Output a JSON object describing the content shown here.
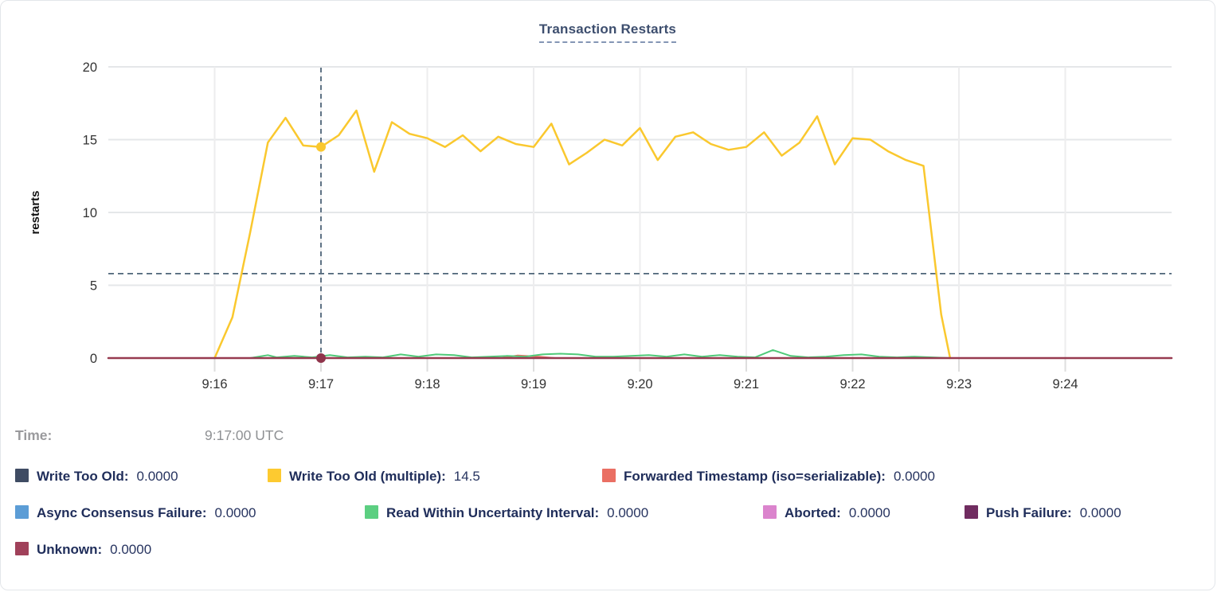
{
  "card": {
    "title": "Transaction Restarts"
  },
  "tooltip": {
    "time_label": "Time:",
    "time_value": "9:17:00 UTC",
    "rows": [
      [
        {
          "label": "Write Too Old:",
          "value": "0.0000",
          "color": "#3f4c63"
        },
        {
          "label": "Write Too Old (multiple):",
          "value": "14.5",
          "color": "#fdca30"
        },
        {
          "label": "Forwarded Timestamp (iso=serializable):",
          "value": "0.0000",
          "color": "#ea6f63"
        }
      ],
      [
        {
          "label": "Async Consensus Failure:",
          "value": "0.0000",
          "color": "#5c9dd6"
        },
        {
          "label": "Read Within Uncertainty Interval:",
          "value": "0.0000",
          "color": "#5ccf81"
        },
        {
          "label": "Aborted:",
          "value": "0.0000",
          "color": "#db84cd"
        },
        {
          "label": "Push Failure:",
          "value": "0.0000",
          "color": "#702c60"
        }
      ],
      [
        {
          "label": "Unknown:",
          "value": "0.0000",
          "color": "#a0415a"
        }
      ]
    ]
  },
  "chart_data": {
    "type": "line",
    "title": "Transaction Restarts",
    "xlabel": "",
    "ylabel": "restarts",
    "ylim": [
      0,
      20
    ],
    "yticks": [
      0,
      5,
      10,
      15,
      20
    ],
    "xticks": [
      {
        "t": 1,
        "label": "9:16"
      },
      {
        "t": 2,
        "label": "9:17"
      },
      {
        "t": 3,
        "label": "9:18"
      },
      {
        "t": 4,
        "label": "9:19"
      },
      {
        "t": 5,
        "label": "9:20"
      },
      {
        "t": 6,
        "label": "9:21"
      },
      {
        "t": 7,
        "label": "9:22"
      },
      {
        "t": 8,
        "label": "9:23"
      },
      {
        "t": 9,
        "label": "9:24"
      }
    ],
    "x_domain_note": "t = minutes after 9:15:00 UTC; visible window 9:15-9:25",
    "x_domain": [
      0,
      10
    ],
    "grid": true,
    "legend_position": "below",
    "crosshair": {
      "t": 2,
      "time": "9:17:00 UTC",
      "hline_value": 5.8
    },
    "markers": [
      {
        "t": 2,
        "value": 14.5,
        "color": "#fac82e"
      },
      {
        "t": 2,
        "value": 0,
        "color": "#8f344b"
      }
    ],
    "series": [
      {
        "name": "Write Too Old",
        "color": "#3f4c63",
        "width": 2,
        "points": [
          [
            0,
            0
          ],
          [
            10,
            0
          ]
        ]
      },
      {
        "name": "Async Consensus Failure",
        "color": "#5c9dd6",
        "width": 2,
        "points": [
          [
            0,
            0
          ],
          [
            10,
            0
          ]
        ]
      },
      {
        "name": "Aborted",
        "color": "#db84cd",
        "width": 2,
        "points": [
          [
            0,
            0
          ],
          [
            10,
            0
          ]
        ]
      },
      {
        "name": "Push Failure",
        "color": "#702c60",
        "width": 2,
        "points": [
          [
            0,
            0
          ],
          [
            10,
            0
          ]
        ]
      },
      {
        "name": "Forwarded Timestamp (iso=serializable)",
        "color": "#ea6f63",
        "width": 2,
        "points": [
          [
            0,
            0
          ],
          [
            3.7,
            0
          ],
          [
            3.85,
            0.18
          ],
          [
            4.05,
            0.1
          ],
          [
            4.2,
            0
          ],
          [
            10,
            0
          ]
        ]
      },
      {
        "name": "Read Within Uncertainty Interval",
        "color": "#4fca79",
        "width": 2,
        "points": [
          [
            1.333,
            0
          ],
          [
            1.5,
            0.2
          ],
          [
            1.583,
            0.05
          ],
          [
            1.75,
            0.15
          ],
          [
            1.917,
            0.05
          ],
          [
            2.083,
            0.2
          ],
          [
            2.25,
            0.05
          ],
          [
            2.417,
            0.1
          ],
          [
            2.583,
            0.05
          ],
          [
            2.75,
            0.25
          ],
          [
            2.917,
            0.1
          ],
          [
            3.083,
            0.25
          ],
          [
            3.25,
            0.2
          ],
          [
            3.417,
            0.05
          ],
          [
            3.583,
            0.1
          ],
          [
            3.75,
            0.15
          ],
          [
            3.917,
            0.1
          ],
          [
            4.083,
            0.25
          ],
          [
            4.25,
            0.3
          ],
          [
            4.417,
            0.25
          ],
          [
            4.583,
            0.1
          ],
          [
            4.75,
            0.1
          ],
          [
            4.917,
            0.15
          ],
          [
            5.083,
            0.2
          ],
          [
            5.25,
            0.1
          ],
          [
            5.417,
            0.25
          ],
          [
            5.583,
            0.1
          ],
          [
            5.75,
            0.2
          ],
          [
            5.917,
            0.1
          ],
          [
            6.083,
            0.05
          ],
          [
            6.25,
            0.55
          ],
          [
            6.417,
            0.15
          ],
          [
            6.583,
            0.05
          ],
          [
            6.75,
            0.1
          ],
          [
            6.917,
            0.2
          ],
          [
            7.083,
            0.25
          ],
          [
            7.25,
            0.1
          ],
          [
            7.417,
            0.05
          ],
          [
            7.583,
            0.1
          ],
          [
            7.75,
            0.05
          ],
          [
            7.917,
            0
          ]
        ]
      },
      {
        "name": "Write Too Old (multiple)",
        "color": "#fac82e",
        "width": 2.5,
        "points": [
          [
            1.0,
            0
          ],
          [
            1.167,
            2.8
          ],
          [
            1.333,
            8.6
          ],
          [
            1.5,
            14.8
          ],
          [
            1.667,
            16.5
          ],
          [
            1.833,
            14.6
          ],
          [
            2.0,
            14.5
          ],
          [
            2.167,
            15.3
          ],
          [
            2.333,
            17.0
          ],
          [
            2.5,
            12.8
          ],
          [
            2.667,
            16.2
          ],
          [
            2.833,
            15.4
          ],
          [
            3.0,
            15.1
          ],
          [
            3.167,
            14.5
          ],
          [
            3.333,
            15.3
          ],
          [
            3.5,
            14.2
          ],
          [
            3.667,
            15.2
          ],
          [
            3.833,
            14.7
          ],
          [
            4.0,
            14.5
          ],
          [
            4.167,
            16.1
          ],
          [
            4.333,
            13.3
          ],
          [
            4.5,
            14.1
          ],
          [
            4.667,
            15.0
          ],
          [
            4.833,
            14.6
          ],
          [
            5.0,
            15.8
          ],
          [
            5.167,
            13.6
          ],
          [
            5.333,
            15.2
          ],
          [
            5.5,
            15.5
          ],
          [
            5.667,
            14.7
          ],
          [
            5.833,
            14.3
          ],
          [
            6.0,
            14.5
          ],
          [
            6.167,
            15.5
          ],
          [
            6.333,
            13.9
          ],
          [
            6.5,
            14.8
          ],
          [
            6.667,
            16.6
          ],
          [
            6.833,
            13.3
          ],
          [
            7.0,
            15.1
          ],
          [
            7.167,
            15.0
          ],
          [
            7.333,
            14.2
          ],
          [
            7.5,
            13.6
          ],
          [
            7.667,
            13.2
          ],
          [
            7.833,
            3.0
          ],
          [
            7.917,
            0
          ]
        ]
      },
      {
        "name": "Unknown",
        "color": "#973a50",
        "width": 2.5,
        "points": [
          [
            0,
            0
          ],
          [
            10,
            0
          ]
        ]
      }
    ],
    "style": {
      "h_grid_color": "#e5e7e9",
      "v_grid_color": "#ededee",
      "tick_color": "#dedede",
      "axis_text_color": "#333333",
      "crosshair_color": "#4e6578"
    }
  }
}
